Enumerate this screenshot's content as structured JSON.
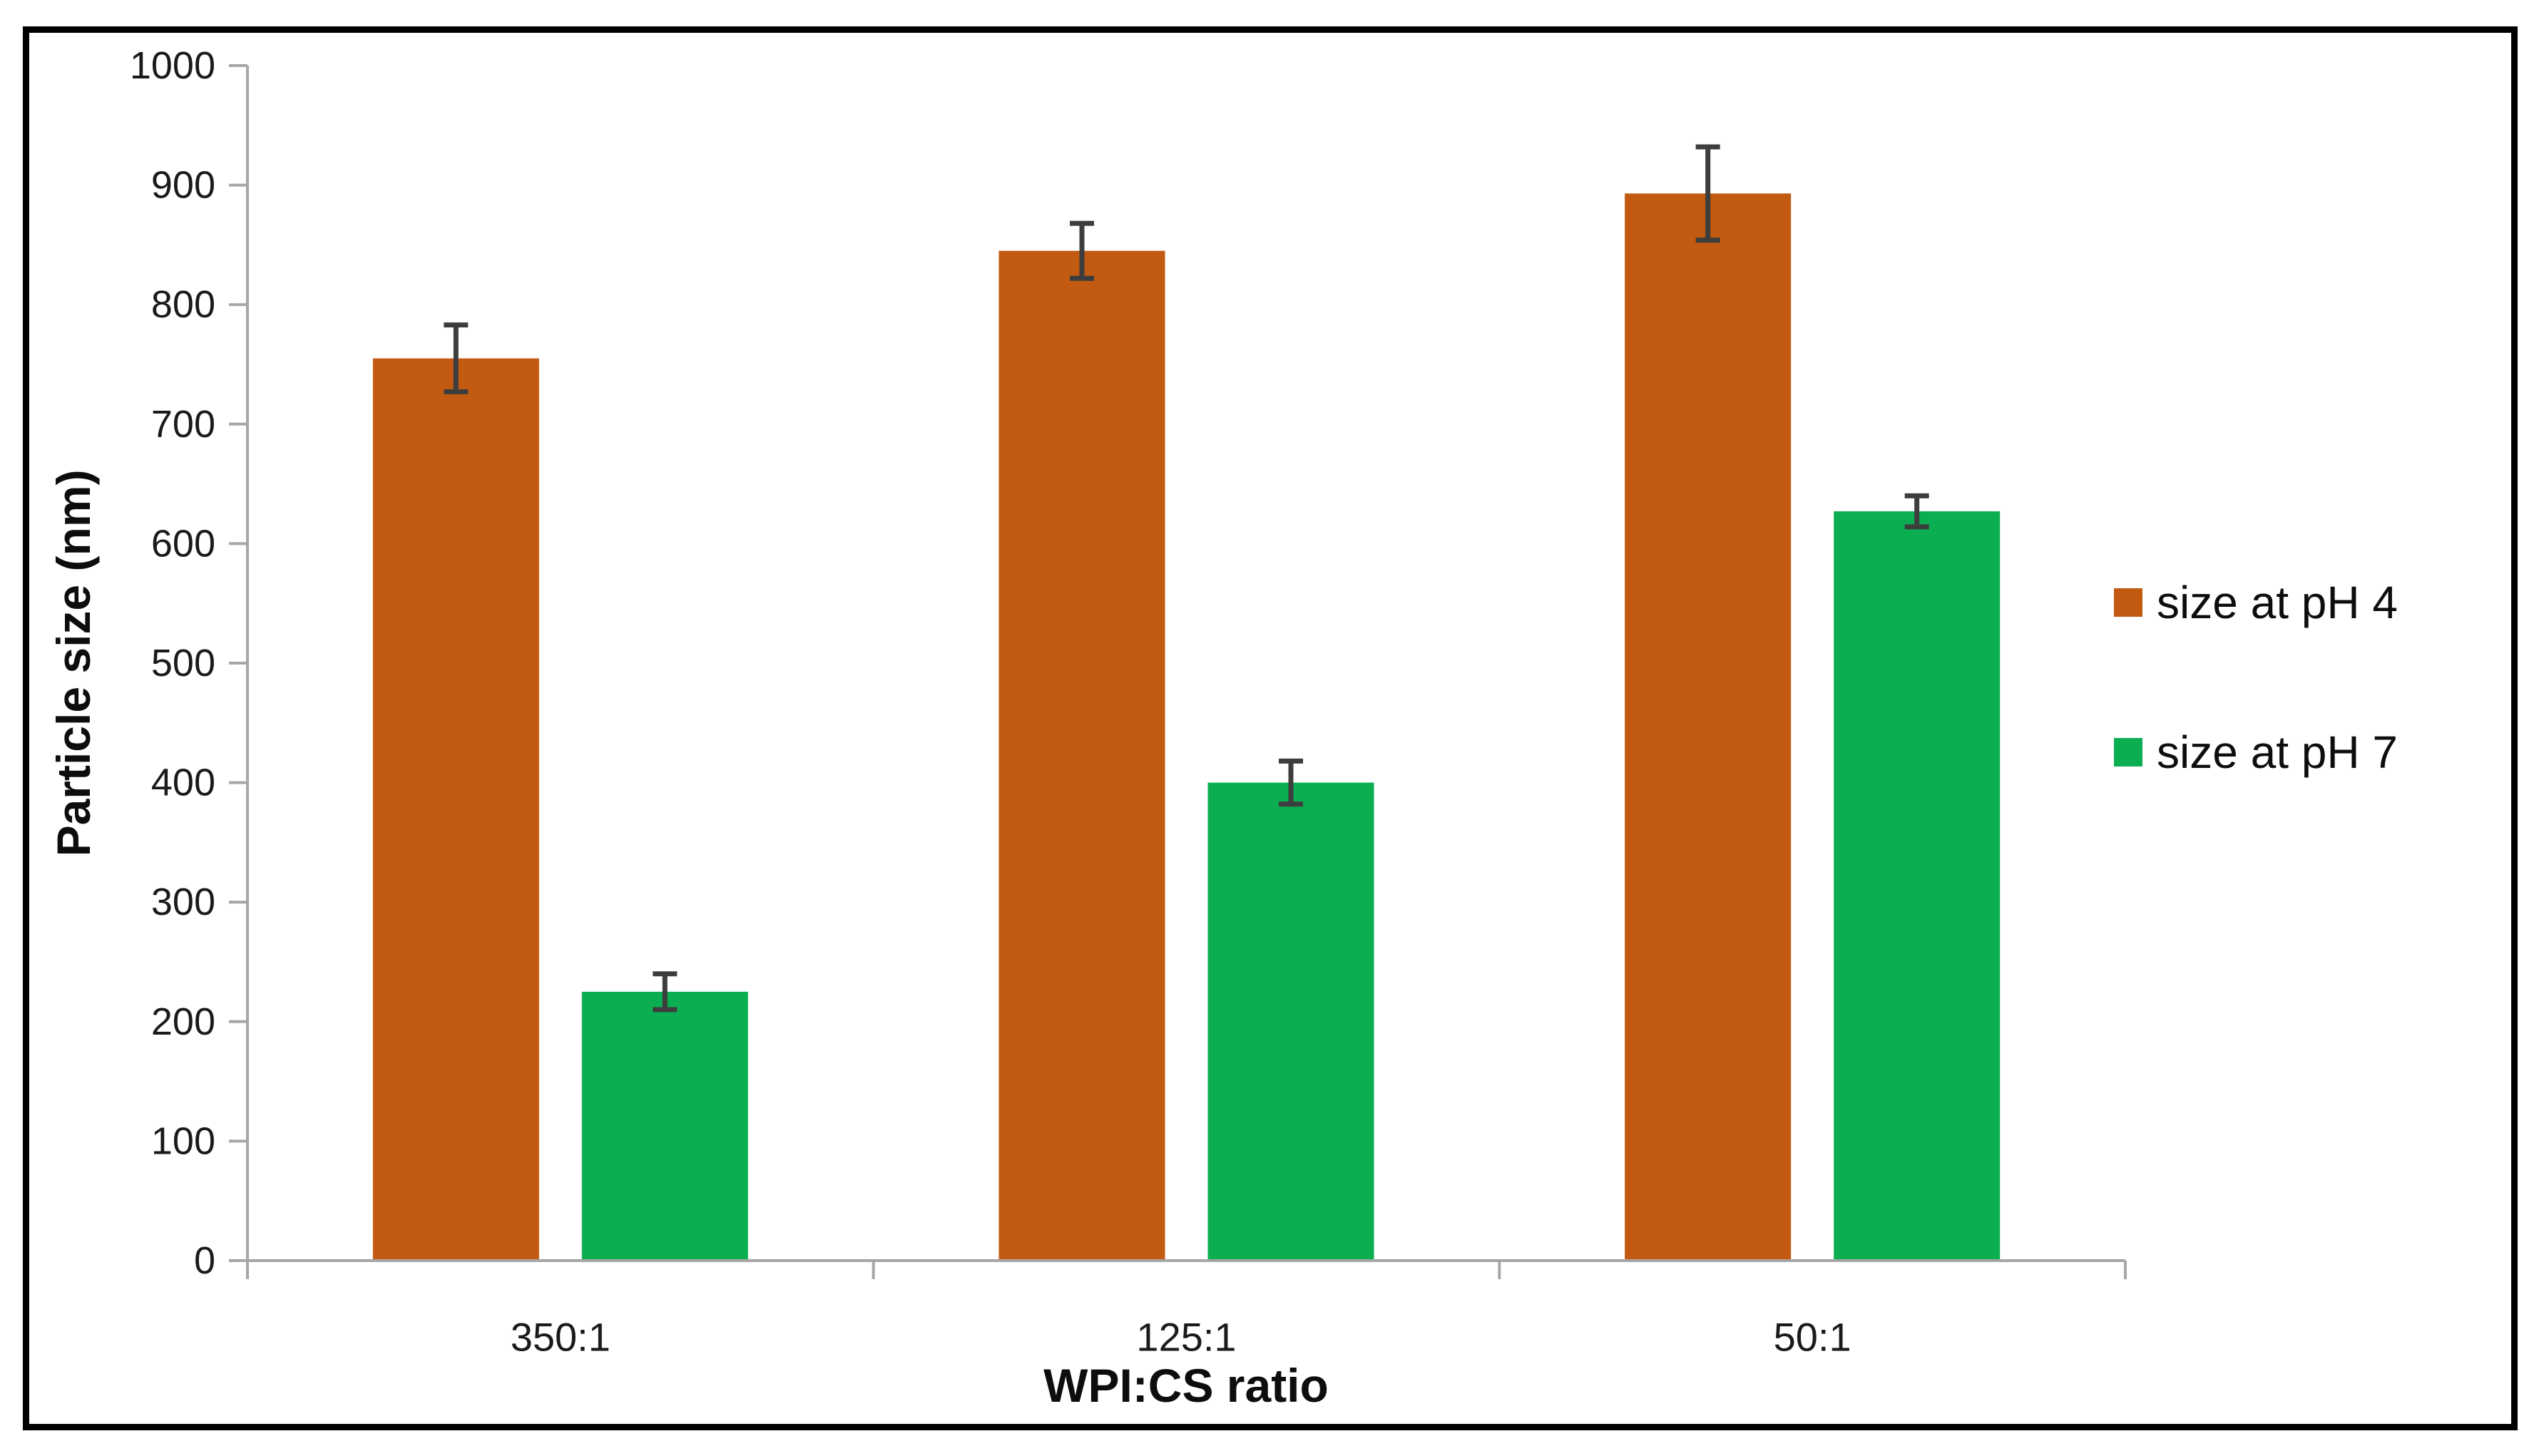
{
  "figure": {
    "y_axis_title": "Particle size (nm)",
    "x_axis_title": "WPI:CS ratio"
  },
  "chart_data": {
    "type": "bar",
    "title": "",
    "xlabel": "WPI:CS ratio",
    "ylabel": "Particle size (nm)",
    "categories": [
      "350:1",
      "125:1",
      "50:1"
    ],
    "series": [
      {
        "name": "size at pH 4",
        "color": "#C25A11",
        "values": [
          755,
          845,
          893
        ],
        "errors": [
          28,
          23,
          39
        ]
      },
      {
        "name": "size at pH 7",
        "color": "#0BAE50",
        "values": [
          225,
          400,
          627
        ],
        "errors": [
          15,
          18,
          13
        ]
      }
    ],
    "ylim": [
      0,
      1000
    ],
    "ytick_step": 100,
    "ytick_labels": [
      "0",
      "100",
      "200",
      "300",
      "400",
      "500",
      "600",
      "700",
      "800",
      "900",
      "1000"
    ],
    "grid": false,
    "error_bars": true,
    "legend_position": "right"
  },
  "legend": {
    "items": [
      {
        "label": "size at pH 4",
        "swatch": "orange-square-swatch"
      },
      {
        "label": "size at pH 7",
        "swatch": "green-square-swatch"
      }
    ]
  },
  "colors": {
    "bar_ph4": "#C25A11",
    "bar_ph7": "#0BAE50",
    "axis_line": "#A6A6A6",
    "error_bar": "#3D3D3D",
    "tick_text": "#1A1A1A",
    "title_text": "#0D0D0D",
    "frame_border": "#000000",
    "background": "#FFFFFF"
  }
}
